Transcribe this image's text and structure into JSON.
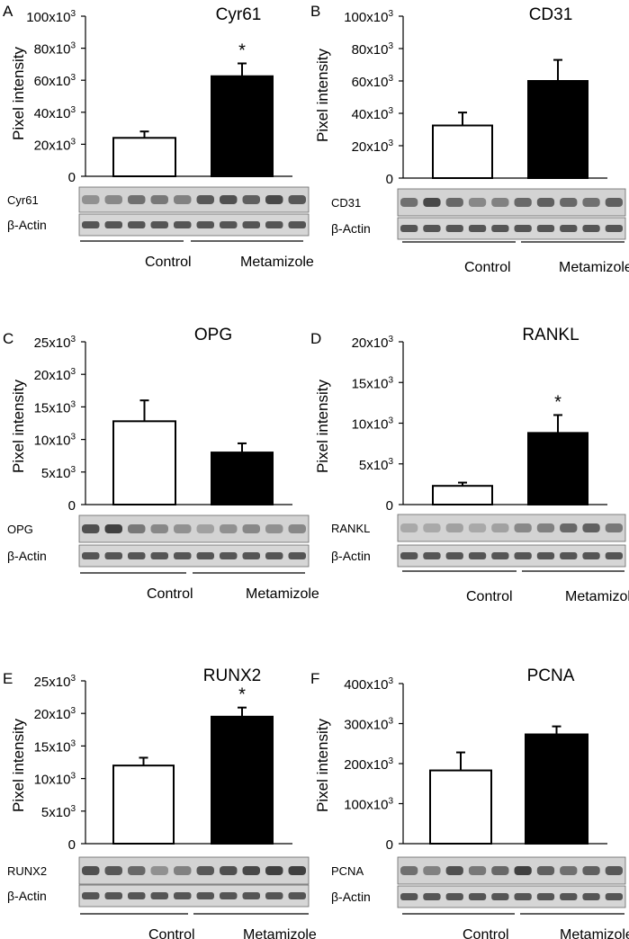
{
  "figure": {
    "y_axis_label": "Pixel intensity",
    "loading_control_label": "β-Actin",
    "group_labels": [
      "Control",
      "Metamizole"
    ]
  },
  "chart_data": [
    {
      "panel": "A",
      "type": "bar",
      "title": "Cyr61",
      "ylabel": "Pixel intensity",
      "ylim": [
        0,
        100000
      ],
      "yticks": [
        {
          "value": 0,
          "label": "0"
        },
        {
          "value": 20000,
          "label": "20x10³"
        },
        {
          "value": 40000,
          "label": "40x10³"
        },
        {
          "value": 60000,
          "label": "60x10³"
        },
        {
          "value": 80000,
          "label": "80x10³"
        },
        {
          "value": 100000,
          "label": "100x10³"
        }
      ],
      "categories": [
        "Control",
        "Metamizole"
      ],
      "values": [
        24000,
        62500
      ],
      "errors": [
        4000,
        8000
      ],
      "bar_fill": [
        "#ffffff",
        "#000000"
      ],
      "significance": [
        "",
        "*"
      ],
      "blot_label": "Cyr61",
      "control_label": "β-Actin",
      "blot_intensity": [
        0.35,
        0.4,
        0.55,
        0.5,
        0.45,
        0.7,
        0.75,
        0.65,
        0.8,
        0.7
      ]
    },
    {
      "panel": "B",
      "type": "bar",
      "title": "CD31",
      "ylabel": "Pixel intensity",
      "ylim": [
        0,
        100000
      ],
      "yticks": [
        {
          "value": 0,
          "label": "0"
        },
        {
          "value": 20000,
          "label": "20x10³"
        },
        {
          "value": 40000,
          "label": "40x10³"
        },
        {
          "value": 60000,
          "label": "60x10³"
        },
        {
          "value": 80000,
          "label": "80x10³"
        },
        {
          "value": 100000,
          "label": "100x10³"
        }
      ],
      "categories": [
        "Control",
        "Metamizole"
      ],
      "values": [
        32500,
        60000
      ],
      "errors": [
        8000,
        13000
      ],
      "bar_fill": [
        "#ffffff",
        "#000000"
      ],
      "significance": [
        "",
        ""
      ],
      "blot_label": "CD31",
      "control_label": "β-Actin",
      "blot_intensity": [
        0.55,
        0.8,
        0.6,
        0.4,
        0.45,
        0.6,
        0.65,
        0.6,
        0.55,
        0.65
      ]
    },
    {
      "panel": "C",
      "type": "bar",
      "title": "OPG",
      "ylabel": "Pixel intensity",
      "ylim": [
        0,
        25000
      ],
      "yticks": [
        {
          "value": 0,
          "label": "0"
        },
        {
          "value": 5000,
          "label": "5x10³"
        },
        {
          "value": 10000,
          "label": "10x10³"
        },
        {
          "value": 15000,
          "label": "15x10³"
        },
        {
          "value": 20000,
          "label": "20x10³"
        },
        {
          "value": 25000,
          "label": "25x10³"
        }
      ],
      "categories": [
        "Control",
        "Metamizole"
      ],
      "values": [
        12800,
        8000
      ],
      "errors": [
        3200,
        1400
      ],
      "bar_fill": [
        "#ffffff",
        "#000000"
      ],
      "significance": [
        "",
        ""
      ],
      "blot_label": "OPG",
      "control_label": "β-Actin",
      "blot_intensity": [
        0.75,
        0.85,
        0.5,
        0.4,
        0.35,
        0.25,
        0.35,
        0.4,
        0.35,
        0.4
      ]
    },
    {
      "panel": "D",
      "type": "bar",
      "title": "RANKL",
      "ylabel": "Pixel intensity",
      "ylim": [
        0,
        20000
      ],
      "yticks": [
        {
          "value": 0,
          "label": "0"
        },
        {
          "value": 5000,
          "label": "5x10³"
        },
        {
          "value": 10000,
          "label": "10x10³"
        },
        {
          "value": 15000,
          "label": "15x10³"
        },
        {
          "value": 20000,
          "label": "20x10³"
        }
      ],
      "categories": [
        "Control",
        "Metamizole"
      ],
      "values": [
        2300,
        8800
      ],
      "errors": [
        400,
        2200
      ],
      "bar_fill": [
        "#ffffff",
        "#000000"
      ],
      "significance": [
        "",
        "*"
      ],
      "blot_label": "RANKL",
      "control_label": "β-Actin",
      "blot_intensity": [
        0.2,
        0.2,
        0.25,
        0.2,
        0.25,
        0.4,
        0.45,
        0.6,
        0.65,
        0.5
      ]
    },
    {
      "panel": "E",
      "type": "bar",
      "title": "RUNX2",
      "ylabel": "Pixel intensity",
      "ylim": [
        0,
        25000
      ],
      "yticks": [
        {
          "value": 0,
          "label": "0"
        },
        {
          "value": 5000,
          "label": "5x10³"
        },
        {
          "value": 10000,
          "label": "10x10³"
        },
        {
          "value": 15000,
          "label": "15x10³"
        },
        {
          "value": 20000,
          "label": "20x10³"
        },
        {
          "value": 25000,
          "label": "25x10³"
        }
      ],
      "categories": [
        "Control",
        "Metamizole"
      ],
      "values": [
        12000,
        19500
      ],
      "errors": [
        1200,
        1400
      ],
      "bar_fill": [
        "#ffffff",
        "#000000"
      ],
      "significance": [
        "",
        "*"
      ],
      "blot_label": "RUNX2",
      "control_label": "β-Actin",
      "blot_intensity": [
        0.75,
        0.7,
        0.6,
        0.35,
        0.45,
        0.7,
        0.75,
        0.8,
        0.85,
        0.85
      ]
    },
    {
      "panel": "F",
      "type": "bar",
      "title": "PCNA",
      "ylabel": "Pixel intensity",
      "ylim": [
        0,
        400000
      ],
      "yticks": [
        {
          "value": 0,
          "label": "0"
        },
        {
          "value": 100000,
          "label": "100x10³"
        },
        {
          "value": 200000,
          "label": "200x10³"
        },
        {
          "value": 300000,
          "label": "300x10³"
        },
        {
          "value": 400000,
          "label": "400x10³"
        }
      ],
      "categories": [
        "Control",
        "Metamizole"
      ],
      "values": [
        183000,
        273000
      ],
      "errors": [
        45000,
        20000
      ],
      "bar_fill": [
        "#ffffff",
        "#000000"
      ],
      "significance": [
        "",
        ""
      ],
      "blot_label": "PCNA",
      "control_label": "β-Actin",
      "blot_intensity": [
        0.55,
        0.45,
        0.75,
        0.5,
        0.6,
        0.85,
        0.65,
        0.55,
        0.65,
        0.7
      ]
    }
  ]
}
